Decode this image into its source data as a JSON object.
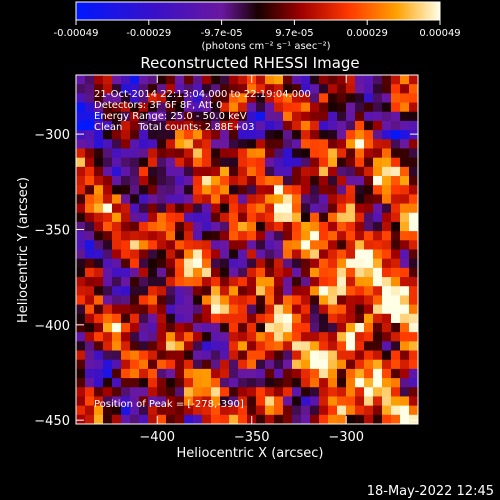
{
  "colorbar": {
    "tick_labels": [
      "-0.00049",
      "-0.00029",
      "-9.7e-05",
      "9.7e-05",
      "0.00029",
      "0.00049"
    ],
    "unit_label": "(photons cm⁻² s⁻¹ asec⁻²)",
    "range": [
      -0.00049,
      0.00049
    ]
  },
  "info": {
    "line1": "21-Oct-2014 22:13:04.000 to 22:19:04.000",
    "line2": "Detectors: 3F 6F 8F, Att 0",
    "line3": "Energy Range: 25.0 - 50.0 keV",
    "line4": "Clean     Total counts: 2.88E+03",
    "peak": "Position of Peak = [-278,-390]"
  },
  "footer": {
    "timestamp": "18-May-2022 12:45"
  },
  "colors": {
    "background": "#000000",
    "foreground": "#ffffff",
    "colormap": "red-temperature"
  },
  "chart_data": {
    "type": "heatmap",
    "title": "Reconstructed RHESSI Image",
    "xlabel": "Heliocentric X (arcsec)",
    "ylabel": "Heliocentric Y (arcsec)",
    "xlim": [
      -443,
      -262
    ],
    "ylim": [
      -452,
      -269
    ],
    "x_ticks": [
      -400,
      -350,
      -300
    ],
    "y_ticks": [
      -300,
      -350,
      -400,
      -450
    ],
    "x_tick_labels": [
      "−400",
      "−350",
      "−300"
    ],
    "y_tick_labels": [
      "−300",
      "−350",
      "−400",
      "−450"
    ],
    "grid": false,
    "peak_position": [
      -278,
      -390
    ],
    "value_range": [
      -0.00049,
      0.00049
    ],
    "n_pixels": [
      38,
      38
    ]
  }
}
